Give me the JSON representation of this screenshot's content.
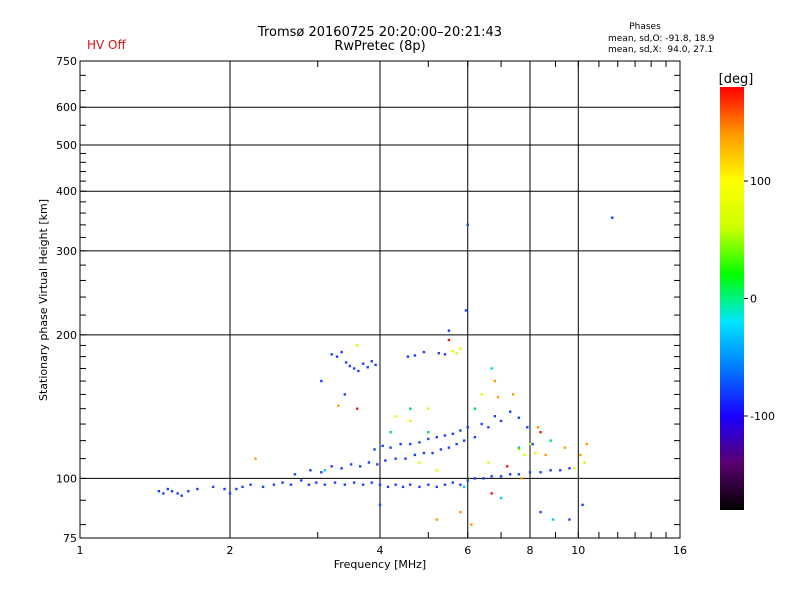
{
  "header": {
    "title": "Tromsø 20160725 20:20:00–20:21:43",
    "subtitle": "RwPretec (8p)",
    "status": "HV Off",
    "status_color": "#e01010"
  },
  "phase_stats": {
    "title": "Phases",
    "o_line": "mean, sd,O: -91.8, 18.9",
    "x_line": "mean, sd,X:  94.0, 27.1"
  },
  "chart_data": {
    "type": "scatter",
    "xlabel": "Frequency [MHz]",
    "ylabel": "Stationary phase Virtual Height [km]",
    "x_scale": "log",
    "y_scale": "log",
    "xlim": [
      1,
      16
    ],
    "ylim": [
      75,
      750
    ],
    "x_ticks": [
      1,
      2,
      4,
      6,
      8,
      10,
      16
    ],
    "x_tick_labels": [
      "1",
      "2",
      "4",
      "6",
      "8",
      "10",
      "16"
    ],
    "x_major_grid": [
      2,
      4,
      6,
      8,
      10
    ],
    "y_ticks": [
      75,
      100,
      200,
      300,
      400,
      500,
      600,
      750
    ],
    "y_tick_labels": [
      "75",
      "100",
      "200",
      "300",
      "400",
      "500",
      "600",
      "750"
    ],
    "y_major_grid": [
      100,
      200,
      300,
      400,
      500,
      600
    ],
    "grid": true,
    "colorbar": {
      "label": "[deg]",
      "range": [
        -180,
        180
      ],
      "ticks": [
        -100,
        0,
        100
      ],
      "tick_labels": [
        "-100",
        "0",
        "100"
      ],
      "colors": [
        "#000000",
        "#5a0070",
        "#1a00ff",
        "#0077ff",
        "#00e5ff",
        "#00ff00",
        "#ccff00",
        "#ffff00",
        "#ff9900",
        "#ff0000"
      ]
    },
    "series": [
      {
        "phase": -100,
        "color": "#1f3fff",
        "points": [
          [
            1.44,
            94
          ],
          [
            1.47,
            93
          ],
          [
            1.5,
            95
          ],
          [
            1.53,
            94
          ],
          [
            1.57,
            93
          ],
          [
            1.6,
            92
          ],
          [
            1.65,
            94
          ],
          [
            1.72,
            95
          ],
          [
            1.85,
            96
          ],
          [
            1.95,
            95
          ],
          [
            2.0,
            93
          ],
          [
            2.06,
            95
          ],
          [
            2.12,
            96
          ],
          [
            2.2,
            97
          ],
          [
            2.33,
            96
          ],
          [
            2.45,
            97
          ],
          [
            2.55,
            98
          ],
          [
            2.65,
            97
          ],
          [
            2.78,
            99
          ],
          [
            2.88,
            97
          ],
          [
            2.98,
            98
          ],
          [
            3.1,
            97
          ],
          [
            3.25,
            98
          ],
          [
            3.4,
            97
          ],
          [
            3.55,
            98
          ],
          [
            3.7,
            97
          ],
          [
            3.85,
            98
          ],
          [
            4.0,
            97
          ],
          [
            4.15,
            96
          ],
          [
            4.3,
            97
          ],
          [
            4.45,
            96
          ],
          [
            4.6,
            97
          ],
          [
            4.8,
            96
          ],
          [
            5.0,
            97
          ],
          [
            5.2,
            96
          ],
          [
            5.4,
            97
          ],
          [
            5.6,
            98
          ],
          [
            5.8,
            97
          ],
          [
            6.0,
            99
          ],
          [
            6.2,
            100
          ],
          [
            6.45,
            100
          ],
          [
            6.7,
            101
          ],
          [
            7.0,
            101
          ],
          [
            7.3,
            102
          ],
          [
            7.6,
            102
          ],
          [
            8.0,
            103
          ],
          [
            8.4,
            103
          ],
          [
            8.8,
            104
          ],
          [
            9.2,
            104
          ],
          [
            9.6,
            105
          ],
          [
            2.7,
            102
          ],
          [
            2.9,
            104
          ],
          [
            3.05,
            103
          ],
          [
            3.2,
            106
          ],
          [
            3.35,
            105
          ],
          [
            3.5,
            107
          ],
          [
            3.65,
            106
          ],
          [
            3.8,
            108
          ],
          [
            3.95,
            107
          ],
          [
            4.1,
            109
          ],
          [
            4.3,
            110
          ],
          [
            4.5,
            110
          ],
          [
            4.7,
            112
          ],
          [
            4.9,
            113
          ],
          [
            5.1,
            113
          ],
          [
            5.3,
            115
          ],
          [
            5.5,
            116
          ],
          [
            5.7,
            118
          ],
          [
            5.9,
            120
          ],
          [
            3.9,
            115
          ],
          [
            4.05,
            117
          ],
          [
            4.2,
            116
          ],
          [
            4.4,
            118
          ],
          [
            4.6,
            118
          ],
          [
            4.8,
            119
          ],
          [
            5.0,
            121
          ],
          [
            5.2,
            122
          ],
          [
            5.4,
            123
          ],
          [
            5.6,
            124
          ],
          [
            5.8,
            126
          ],
          [
            6.0,
            128
          ],
          [
            6.2,
            122
          ],
          [
            6.4,
            130
          ],
          [
            6.6,
            128
          ],
          [
            6.8,
            135
          ],
          [
            7.0,
            132
          ],
          [
            7.3,
            138
          ],
          [
            7.6,
            134
          ],
          [
            7.9,
            128
          ],
          [
            8.1,
            118
          ],
          [
            3.2,
            182
          ],
          [
            3.28,
            180
          ],
          [
            3.35,
            184
          ],
          [
            3.42,
            175
          ],
          [
            3.48,
            172
          ],
          [
            3.55,
            170
          ],
          [
            3.62,
            168
          ],
          [
            3.7,
            174
          ],
          [
            3.78,
            171
          ],
          [
            3.85,
            176
          ],
          [
            3.92,
            173
          ],
          [
            4.55,
            180
          ],
          [
            4.7,
            181
          ],
          [
            4.9,
            184
          ],
          [
            5.25,
            183
          ],
          [
            5.4,
            182
          ],
          [
            3.05,
            160
          ],
          [
            3.4,
            150
          ],
          [
            4.0,
            88
          ],
          [
            5.5,
            204
          ],
          [
            5.95,
            225
          ],
          [
            6.0,
            340
          ],
          [
            10.2,
            88
          ],
          [
            11.7,
            352
          ],
          [
            8.4,
            85
          ],
          [
            9.6,
            82
          ]
        ]
      },
      {
        "phase": 80,
        "color": "#d8ff00",
        "points": [
          [
            5.6,
            185
          ],
          [
            5.7,
            183
          ],
          [
            5.8,
            187
          ],
          [
            4.3,
            135
          ],
          [
            4.6,
            132
          ],
          [
            5.0,
            140
          ],
          [
            6.6,
            108
          ],
          [
            7.8,
            112
          ],
          [
            8.0,
            118
          ],
          [
            8.2,
            113
          ],
          [
            7.6,
            115
          ],
          [
            9.8,
            105
          ],
          [
            10.3,
            108
          ],
          [
            6.4,
            150
          ],
          [
            4.8,
            108
          ],
          [
            5.2,
            104
          ],
          [
            3.6,
            190
          ]
        ]
      },
      {
        "phase": 120,
        "color": "#ff9a00",
        "points": [
          [
            6.8,
            160
          ],
          [
            7.4,
            150
          ],
          [
            8.3,
            128
          ],
          [
            10.1,
            112
          ],
          [
            10.4,
            118
          ],
          [
            5.8,
            85
          ],
          [
            6.1,
            80
          ],
          [
            5.2,
            82
          ],
          [
            8.6,
            112
          ],
          [
            3.3,
            142
          ],
          [
            2.25,
            110
          ],
          [
            9.4,
            116
          ],
          [
            6.9,
            148
          ],
          [
            7.7,
            100
          ]
        ]
      },
      {
        "phase": 40,
        "color": "#00e060",
        "points": [
          [
            4.6,
            140
          ],
          [
            5.0,
            125
          ],
          [
            7.6,
            116
          ],
          [
            8.8,
            120
          ],
          [
            4.2,
            125
          ],
          [
            6.2,
            140
          ]
        ]
      },
      {
        "phase": 180,
        "color": "#ff1010",
        "points": [
          [
            6.7,
            93
          ],
          [
            5.5,
            195
          ],
          [
            7.2,
            106
          ],
          [
            3.6,
            140
          ],
          [
            8.4,
            125
          ]
        ]
      },
      {
        "phase": -20,
        "color": "#00d0ff",
        "points": [
          [
            6.7,
            170
          ],
          [
            5.9,
            96
          ],
          [
            3.1,
            104
          ],
          [
            8.9,
            82
          ],
          [
            7.0,
            91
          ]
        ]
      }
    ]
  }
}
